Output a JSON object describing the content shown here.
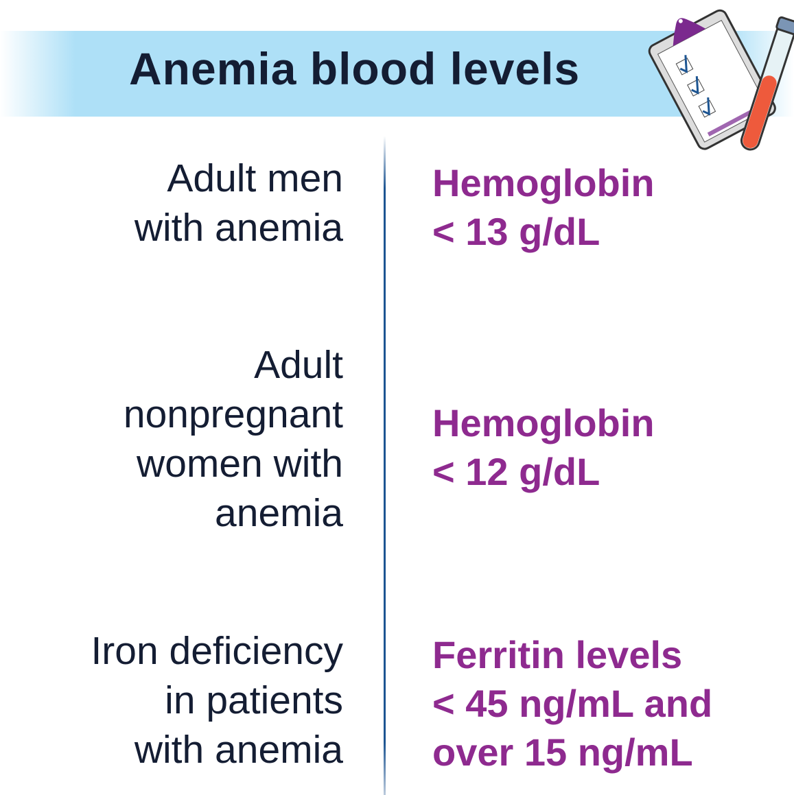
{
  "header": {
    "title": "Anemia blood levels",
    "icon": "clipboard-test-tube-icon"
  },
  "rows": [
    {
      "group": [
        "Adult men",
        "with anemia"
      ],
      "threshold": [
        "Hemoglobin",
        "< 13 g/dL"
      ]
    },
    {
      "group": [
        "Adult",
        "nonpregnant",
        "women with",
        "anemia"
      ],
      "threshold": [
        "Hemoglobin",
        "< 12 g/dL"
      ]
    },
    {
      "group": [
        "Iron deficiency",
        "in patients",
        "with anemia"
      ],
      "threshold": [
        "Ferritin levels",
        "< 45 ng/mL and",
        "over 15 ng/mL"
      ]
    }
  ],
  "colors": {
    "title": "#141d33",
    "accent": "#8e2a8f",
    "band": "#aee0f7",
    "divider": "#1d5592"
  }
}
